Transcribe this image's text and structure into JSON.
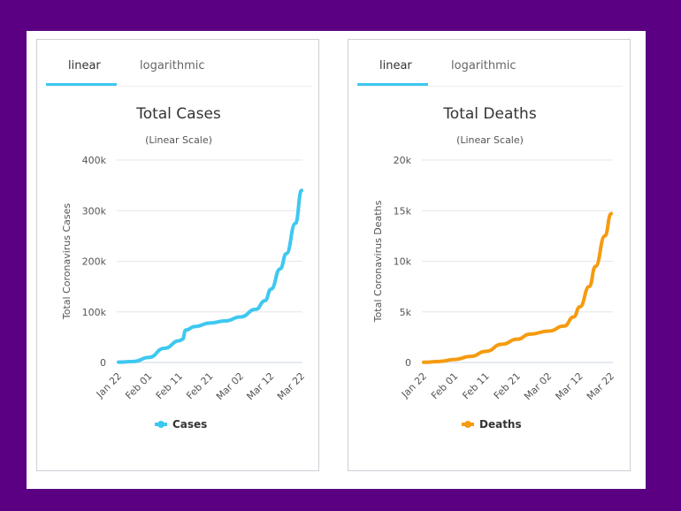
{
  "charts_ui": [
    {
      "tabs": [
        "linear",
        "logarithmic"
      ],
      "active_tab": "linear"
    },
    {
      "tabs": [
        "linear",
        "logarithmic"
      ],
      "active_tab": "linear"
    }
  ],
  "chart_data": [
    {
      "type": "line",
      "title": "Total Cases",
      "subtitle": "(Linear Scale)",
      "ylabel": "Total Coronavirus Cases",
      "xlabel": "",
      "x_ticks": [
        "Jan 22",
        "Feb 01",
        "Feb 11",
        "Feb 21",
        "Mar 02",
        "Mar 12",
        "Mar 22"
      ],
      "y_ticks": [
        "0",
        "100k",
        "200k",
        "300k",
        "400k"
      ],
      "ylim": [
        0,
        400000
      ],
      "xlim_days": [
        0,
        60
      ],
      "grid": true,
      "legend": "bottom",
      "color": "#3ec8f0",
      "series": [
        {
          "name": "Cases",
          "days": [
            0,
            5,
            10,
            15,
            20,
            21,
            22,
            25,
            30,
            35,
            40,
            45,
            48,
            50,
            53,
            55,
            58,
            60
          ],
          "values": [
            555,
            2000,
            10000,
            28000,
            43000,
            46000,
            64000,
            71000,
            78000,
            82000,
            90000,
            105000,
            122000,
            145000,
            185000,
            215000,
            275000,
            340000
          ]
        }
      ]
    },
    {
      "type": "line",
      "title": "Total Deaths",
      "subtitle": "(Linear Scale)",
      "ylabel": "Total Coronavirus Deaths",
      "xlabel": "",
      "x_ticks": [
        "Jan 22",
        "Feb 01",
        "Feb 11",
        "Feb 21",
        "Mar 02",
        "Mar 12",
        "Mar 22"
      ],
      "y_ticks": [
        "0",
        "5k",
        "10k",
        "15k",
        "20k"
      ],
      "ylim": [
        0,
        20000
      ],
      "xlim_days": [
        0,
        60
      ],
      "grid": true,
      "legend": "bottom",
      "color": "#f59b10",
      "series": [
        {
          "name": "Deaths",
          "days": [
            0,
            5,
            10,
            15,
            20,
            25,
            30,
            34,
            40,
            45,
            48,
            50,
            53,
            55,
            58,
            60
          ],
          "values": [
            17,
            100,
            300,
            600,
            1100,
            1800,
            2300,
            2800,
            3100,
            3600,
            4500,
            5500,
            7500,
            9500,
            12500,
            14700
          ]
        }
      ]
    }
  ]
}
